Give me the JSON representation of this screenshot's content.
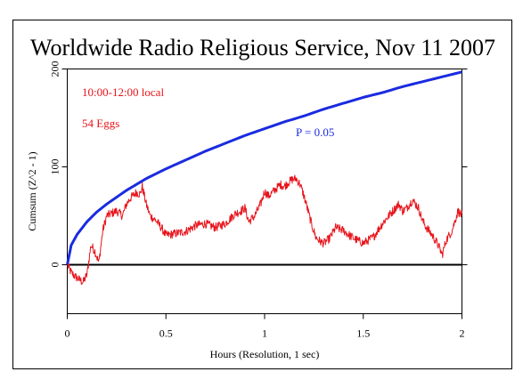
{
  "chart_data": {
    "type": "line",
    "title": "Worldwide Radio Religious Service, Nov 11 2007",
    "xlabel": "Hours (Resolution, 1 sec)",
    "ylabel": "Cumsum (Z^2 - 1)",
    "xlim": [
      0,
      2
    ],
    "ylim": [
      -50,
      200
    ],
    "x_ticks": [
      "0",
      "0.5",
      "1",
      "1.5",
      "2"
    ],
    "y_ticks": [
      "0",
      "100",
      "200"
    ],
    "x_tick_values": [
      0,
      0.5,
      1,
      1.5,
      2
    ],
    "y_tick_values": [
      0,
      100,
      200
    ],
    "grid": false,
    "annotations": {
      "time": "10:00-12:00 local",
      "eggs": "54 Eggs",
      "p": "P = 0.05"
    },
    "colors": {
      "data": "#e8141c",
      "envelope": "#1a2be0",
      "baseline": "#000000",
      "text": "#000000"
    },
    "series": [
      {
        "label_ref": "p",
        "role": "significance-envelope",
        "x": [
          0,
          0.02,
          0.05,
          0.1,
          0.15,
          0.2,
          0.3,
          0.4,
          0.5,
          0.6,
          0.7,
          0.8,
          0.9,
          1.0,
          1.1,
          1.2,
          1.3,
          1.4,
          1.5,
          1.6,
          1.7,
          1.8,
          1.9,
          2.0
        ],
        "values": [
          0,
          20,
          31,
          44,
          54,
          62,
          76,
          88,
          98,
          107,
          116,
          124,
          132,
          139,
          146,
          152,
          159,
          165,
          171,
          176,
          182,
          187,
          192,
          197
        ]
      },
      {
        "label_ref": "eggs",
        "role": "cumulative-deviation",
        "x": [
          0,
          0.02,
          0.04,
          0.06,
          0.08,
          0.1,
          0.12,
          0.14,
          0.16,
          0.18,
          0.2,
          0.22,
          0.25,
          0.28,
          0.3,
          0.32,
          0.35,
          0.37,
          0.38,
          0.4,
          0.42,
          0.45,
          0.48,
          0.5,
          0.55,
          0.6,
          0.65,
          0.7,
          0.75,
          0.8,
          0.85,
          0.88,
          0.9,
          0.92,
          0.95,
          0.98,
          1.0,
          1.02,
          1.05,
          1.08,
          1.1,
          1.12,
          1.14,
          1.16,
          1.18,
          1.2,
          1.22,
          1.24,
          1.26,
          1.28,
          1.3,
          1.33,
          1.36,
          1.4,
          1.43,
          1.46,
          1.5,
          1.55,
          1.6,
          1.65,
          1.68,
          1.7,
          1.72,
          1.75,
          1.78,
          1.8,
          1.82,
          1.85,
          1.88,
          1.9,
          1.92,
          1.95,
          1.98,
          2.0
        ],
        "values": [
          0,
          -8,
          -12,
          -15,
          -18,
          -10,
          20,
          14,
          2,
          35,
          50,
          52,
          55,
          50,
          62,
          68,
          74,
          72,
          80,
          62,
          50,
          45,
          37,
          30,
          32,
          34,
          40,
          42,
          38,
          42,
          52,
          55,
          58,
          44,
          50,
          62,
          75,
          70,
          76,
          82,
          80,
          84,
          87,
          88,
          82,
          70,
          55,
          40,
          28,
          24,
          22,
          27,
          38,
          35,
          30,
          26,
          22,
          28,
          43,
          55,
          62,
          55,
          58,
          66,
          58,
          45,
          38,
          30,
          20,
          10,
          25,
          35,
          55,
          50
        ]
      }
    ]
  }
}
